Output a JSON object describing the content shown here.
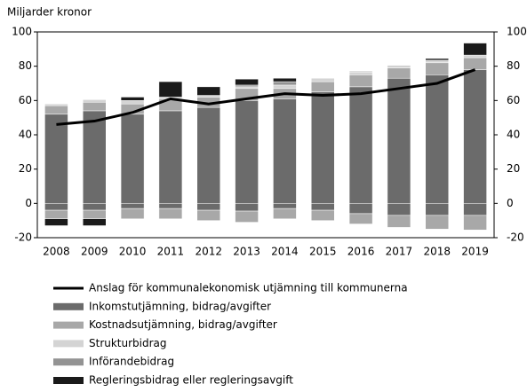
{
  "chart_data": {
    "type": "bar",
    "y_label": "Miljarder kronor",
    "categories": [
      "2008",
      "2009",
      "2010",
      "2011",
      "2012",
      "2013",
      "2014",
      "2015",
      "2016",
      "2017",
      "2018",
      "2019"
    ],
    "line": {
      "name": "Anslag för kommunalekonomisk utjämning till kommunerna",
      "color": "#000000",
      "values": [
        46,
        48,
        53,
        61,
        58,
        61,
        64,
        63,
        64,
        67,
        70,
        78
      ]
    },
    "series": [
      {
        "name": "Inkomstutjämning, bidrag/avgifter",
        "color": "#6b6b6b",
        "values": [
          52,
          54,
          52,
          54,
          56,
          60,
          61,
          65,
          68,
          73,
          75,
          78
        ],
        "negative": [
          -4,
          -4,
          -3,
          -3,
          -4,
          -4.5,
          -3,
          -4,
          -6,
          -7,
          -7,
          -7
        ]
      },
      {
        "name": "Kostnadsutjämning, bidrag/avgifter",
        "color": "#a8a8a8",
        "values": [
          5,
          5,
          6,
          7,
          6,
          7,
          6,
          6,
          7,
          6,
          7,
          7
        ],
        "negative": [
          -5,
          -5,
          -6,
          -6,
          -6,
          -6.5,
          -6,
          -6,
          -6,
          -7,
          -8,
          -8.5
        ]
      },
      {
        "name": "Strukturbidrag",
        "color": "#d4d4d4",
        "values": [
          1,
          1.5,
          2,
          1,
          1,
          1,
          2,
          2,
          1.5,
          1,
          1.5,
          1.5
        ],
        "negative": [
          0,
          0,
          0,
          0,
          0,
          0,
          0,
          0,
          0,
          0,
          0,
          0
        ]
      },
      {
        "name": "Införandebidrag",
        "color": "#939393",
        "values": [
          0,
          0,
          0,
          0,
          0,
          1,
          2,
          0,
          0.5,
          0.5,
          0,
          0
        ],
        "negative": [
          0,
          0,
          0,
          0,
          0,
          0,
          0,
          0,
          0,
          0,
          0,
          0
        ]
      },
      {
        "name": "Regleringsbidrag eller regleringsavgift",
        "color": "#1a1a1a",
        "values": [
          0,
          0,
          2,
          9,
          5,
          3.5,
          2,
          0,
          0,
          0,
          1,
          7
        ],
        "negative": [
          -4,
          -4,
          0,
          0,
          0,
          0,
          0,
          0,
          0,
          0,
          0,
          0
        ]
      }
    ],
    "ylim": [
      -20,
      100
    ],
    "yticks": [
      -20,
      0,
      20,
      40,
      60,
      80,
      100
    ],
    "y2lim": [
      -20,
      100
    ],
    "y2ticks": [
      -20,
      0,
      20,
      40,
      60,
      80,
      100
    ]
  }
}
